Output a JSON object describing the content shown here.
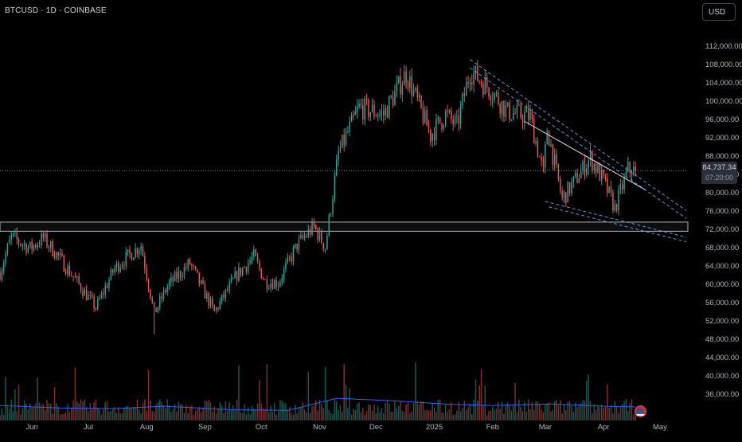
{
  "header": {
    "symbol_title": "BTCUSD · 1D · COINBASE"
  },
  "controls": {
    "currency_label": "USD"
  },
  "last_price": {
    "value": "84,737.34",
    "countdown": "07:20:00"
  },
  "colors": {
    "up": "#26a69a",
    "down": "#ef5350",
    "volume_ma": "#2962ff",
    "channel": "#5b9bd5",
    "trendline": "#e0e3eb",
    "zone": "#ffffff"
  },
  "chart_data": {
    "type": "candlestick",
    "y_axis": {
      "ylim": [
        34000,
        114000
      ],
      "ticks": [
        112000,
        108000,
        104000,
        100000,
        96000,
        92000,
        88000,
        84000,
        80000,
        76000,
        72000,
        68000,
        64000,
        60000,
        56000,
        52000,
        48000,
        44000,
        40000,
        36000
      ],
      "tick_labels": [
        "112,000.00",
        "108,000.00",
        "104,000.00",
        "100,000.00",
        "96,000.00",
        "92,000.00",
        "88,000.00",
        "84,000.00",
        "80,000.00",
        "76,000.00",
        "72,000.00",
        "68,000.00",
        "64,000.00",
        "60,000.00",
        "56,000.00",
        "52,000.00",
        "48,000.00",
        "44,000.00",
        "40,000.00",
        "36,000.00"
      ]
    },
    "x_axis": {
      "labels": [
        "Jun",
        "Jul",
        "Aug",
        "Sep",
        "Oct",
        "Nov",
        "Dec",
        "2025",
        "Feb",
        "Mar",
        "Apr",
        "May"
      ],
      "dates": [
        "2024-06-01",
        "2024-07-01",
        "2024-08-01",
        "2024-09-01",
        "2024-10-01",
        "2024-11-01",
        "2024-12-01",
        "2025-01-01",
        "2025-02-01",
        "2025-03-01",
        "2025-04-01",
        "2025-05-01"
      ],
      "range": [
        "2024-05-15",
        "2025-05-15"
      ]
    },
    "price_path": [
      [
        "2024-05-15",
        62500
      ],
      [
        "2024-05-21",
        70200
      ],
      [
        "2024-05-31",
        67800
      ],
      [
        "2024-06-07",
        70000
      ],
      [
        "2024-06-14",
        66500
      ],
      [
        "2024-06-24",
        61000
      ],
      [
        "2024-07-05",
        54800
      ],
      [
        "2024-07-15",
        63500
      ],
      [
        "2024-07-29",
        68500
      ],
      [
        "2024-08-05",
        53500
      ],
      [
        "2024-08-12",
        59500
      ],
      [
        "2024-08-24",
        64500
      ],
      [
        "2024-09-06",
        53800
      ],
      [
        "2024-09-18",
        62000
      ],
      [
        "2024-09-27",
        66000
      ],
      [
        "2024-10-03",
        60500
      ],
      [
        "2024-10-10",
        60300
      ],
      [
        "2024-10-20",
        68500
      ],
      [
        "2024-10-29",
        72500
      ],
      [
        "2024-11-04",
        68000
      ],
      [
        "2024-11-11",
        88500
      ],
      [
        "2024-11-22",
        98500
      ],
      [
        "2024-12-05",
        97000
      ],
      [
        "2024-12-17",
        106000
      ],
      [
        "2024-12-30",
        92500
      ],
      [
        "2025-01-07",
        97000
      ],
      [
        "2025-01-13",
        94500
      ],
      [
        "2025-01-20",
        106500
      ],
      [
        "2025-01-31",
        102400
      ],
      [
        "2025-02-09",
        97500
      ],
      [
        "2025-02-21",
        96500
      ],
      [
        "2025-02-28",
        84000
      ],
      [
        "2025-03-02",
        94000
      ],
      [
        "2025-03-10",
        78500
      ],
      [
        "2025-03-25",
        87500
      ],
      [
        "2025-04-01",
        82500
      ],
      [
        "2025-04-07",
        76500
      ],
      [
        "2025-04-14",
        85000
      ],
      [
        "2025-04-18",
        84737
      ]
    ],
    "last_price": 84737.34,
    "last_price_countdown": "07:20:00",
    "volume_ma_path": [
      [
        "2024-05-15",
        0.42
      ],
      [
        "2024-06-15",
        0.35
      ],
      [
        "2024-07-15",
        0.33
      ],
      [
        "2024-08-10",
        0.4
      ],
      [
        "2024-09-15",
        0.3
      ],
      [
        "2024-10-15",
        0.28
      ],
      [
        "2024-11-10",
        0.62
      ],
      [
        "2024-12-10",
        0.55
      ],
      [
        "2025-01-10",
        0.45
      ],
      [
        "2025-02-01",
        0.42
      ],
      [
        "2025-03-05",
        0.46
      ],
      [
        "2025-04-01",
        0.4
      ],
      [
        "2025-04-18",
        0.38
      ]
    ],
    "drawings": {
      "support_zone": {
        "from": 71500,
        "to": 73500
      },
      "descending_channel_upper": [
        [
          "2025-01-20",
          109000
        ],
        [
          "2025-05-15",
          76000
        ]
      ],
      "descending_channel_upper_inner": [
        [
          "2025-01-20",
          107200
        ],
        [
          "2025-05-15",
          74300
        ]
      ],
      "descending_channel_lower": [
        [
          "2025-03-01",
          78000
        ],
        [
          "2025-05-15",
          70200
        ]
      ],
      "descending_channel_lower_inner": [
        [
          "2025-03-03",
          76800
        ],
        [
          "2025-05-15",
          69200
        ]
      ],
      "trendline": [
        [
          "2025-02-18",
          95500
        ],
        [
          "2025-04-23",
          80600
        ]
      ],
      "current_price_line": 84737.34
    },
    "grid": false,
    "legend": "none"
  }
}
